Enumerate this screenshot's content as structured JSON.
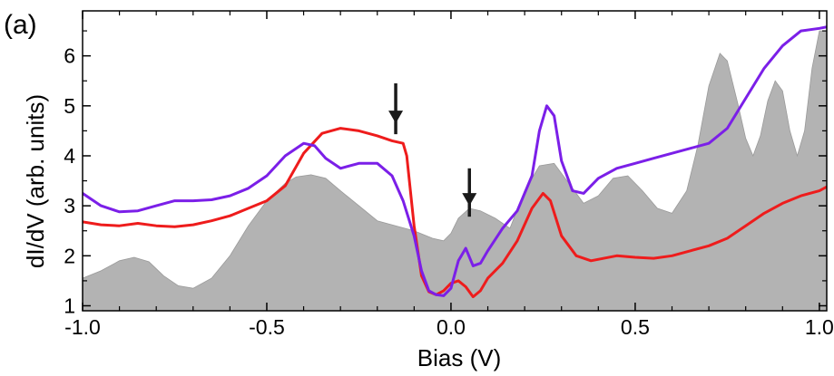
{
  "panel_label": "(a)",
  "chart_data": {
    "type": "line",
    "xlabel": "Bias (V)",
    "ylabel": "dI/dV (arb. units)",
    "xlim": [
      -1.0,
      1.02
    ],
    "ylim": [
      0.9,
      6.9
    ],
    "x_ticks": [
      -1.0,
      -0.5,
      0.0,
      0.5,
      1.0
    ],
    "x_tick_labels": [
      "-1.0",
      "-0.5",
      "0.0",
      "0.5",
      "1.0"
    ],
    "y_ticks": [
      1,
      2,
      3,
      4,
      5,
      6
    ],
    "y_tick_labels": [
      "1",
      "2",
      "3",
      "4",
      "5",
      "6"
    ],
    "colors": {
      "red": "#ee1c1c",
      "purple": "#7b1fe8",
      "fill": "#b3b3b3",
      "arrow": "#1a1a1a"
    },
    "arrows": [
      {
        "x": -0.15,
        "y_tip": 4.65,
        "y_tail": 5.45
      },
      {
        "x": 0.05,
        "y_tip": 3.0,
        "y_tail": 3.75
      }
    ],
    "series": [
      {
        "name": "shaded",
        "style": "area",
        "x": [
          -1.0,
          -0.95,
          -0.9,
          -0.86,
          -0.82,
          -0.78,
          -0.74,
          -0.7,
          -0.65,
          -0.6,
          -0.55,
          -0.5,
          -0.45,
          -0.42,
          -0.38,
          -0.34,
          -0.3,
          -0.25,
          -0.2,
          -0.15,
          -0.1,
          -0.05,
          -0.02,
          0.0,
          0.02,
          0.05,
          0.08,
          0.12,
          0.16,
          0.2,
          0.24,
          0.28,
          0.32,
          0.36,
          0.4,
          0.44,
          0.48,
          0.52,
          0.56,
          0.6,
          0.64,
          0.67,
          0.7,
          0.73,
          0.75,
          0.78,
          0.8,
          0.82,
          0.84,
          0.86,
          0.88,
          0.9,
          0.92,
          0.94,
          0.96,
          0.98,
          1.0,
          1.02
        ],
        "values": [
          1.55,
          1.7,
          1.9,
          1.97,
          1.88,
          1.6,
          1.4,
          1.35,
          1.55,
          2.0,
          2.6,
          3.1,
          3.45,
          3.58,
          3.62,
          3.55,
          3.3,
          3.0,
          2.7,
          2.6,
          2.5,
          2.35,
          2.3,
          2.45,
          2.75,
          2.95,
          2.9,
          2.75,
          2.55,
          3.3,
          3.8,
          3.85,
          3.45,
          3.05,
          3.2,
          3.55,
          3.6,
          3.3,
          2.95,
          2.85,
          3.3,
          4.2,
          5.4,
          6.05,
          5.9,
          5.0,
          4.35,
          4.0,
          4.4,
          5.1,
          5.5,
          5.3,
          4.5,
          4.0,
          4.5,
          5.75,
          6.5,
          6.5
        ]
      },
      {
        "name": "red",
        "style": "line",
        "x": [
          -1.0,
          -0.95,
          -0.9,
          -0.85,
          -0.8,
          -0.75,
          -0.7,
          -0.65,
          -0.6,
          -0.55,
          -0.5,
          -0.45,
          -0.4,
          -0.35,
          -0.3,
          -0.25,
          -0.2,
          -0.16,
          -0.13,
          -0.12,
          -0.1,
          -0.08,
          -0.06,
          -0.04,
          -0.02,
          0.0,
          0.02,
          0.04,
          0.06,
          0.08,
          0.1,
          0.14,
          0.18,
          0.22,
          0.25,
          0.27,
          0.3,
          0.34,
          0.38,
          0.45,
          0.5,
          0.55,
          0.6,
          0.65,
          0.7,
          0.75,
          0.8,
          0.85,
          0.9,
          0.95,
          1.0,
          1.02
        ],
        "values": [
          2.68,
          2.62,
          2.6,
          2.65,
          2.6,
          2.58,
          2.62,
          2.7,
          2.8,
          2.95,
          3.1,
          3.4,
          4.05,
          4.45,
          4.55,
          4.5,
          4.4,
          4.3,
          4.25,
          4.0,
          2.6,
          1.6,
          1.28,
          1.22,
          1.3,
          1.45,
          1.5,
          1.38,
          1.18,
          1.3,
          1.55,
          1.85,
          2.3,
          2.95,
          3.25,
          3.1,
          2.4,
          2.0,
          1.9,
          2.0,
          1.97,
          1.95,
          2.0,
          2.1,
          2.2,
          2.35,
          2.6,
          2.85,
          3.05,
          3.2,
          3.3,
          3.38
        ]
      },
      {
        "name": "purple",
        "style": "line",
        "x": [
          -1.0,
          -0.95,
          -0.9,
          -0.85,
          -0.8,
          -0.75,
          -0.7,
          -0.65,
          -0.6,
          -0.55,
          -0.5,
          -0.45,
          -0.4,
          -0.37,
          -0.34,
          -0.3,
          -0.25,
          -0.2,
          -0.16,
          -0.13,
          -0.1,
          -0.08,
          -0.06,
          -0.04,
          -0.02,
          0.0,
          0.02,
          0.04,
          0.06,
          0.08,
          0.1,
          0.14,
          0.18,
          0.22,
          0.24,
          0.26,
          0.28,
          0.3,
          0.33,
          0.36,
          0.4,
          0.45,
          0.5,
          0.55,
          0.6,
          0.65,
          0.7,
          0.75,
          0.8,
          0.85,
          0.9,
          0.95,
          1.0,
          1.02
        ],
        "values": [
          3.25,
          3.0,
          2.88,
          2.9,
          3.0,
          3.1,
          3.1,
          3.12,
          3.2,
          3.35,
          3.6,
          4.0,
          4.25,
          4.2,
          3.95,
          3.75,
          3.85,
          3.85,
          3.6,
          3.1,
          2.4,
          1.7,
          1.3,
          1.22,
          1.2,
          1.35,
          1.9,
          2.15,
          1.8,
          1.85,
          2.1,
          2.55,
          2.9,
          3.6,
          4.5,
          5.0,
          4.8,
          3.9,
          3.3,
          3.25,
          3.55,
          3.75,
          3.85,
          3.95,
          4.05,
          4.15,
          4.25,
          4.55,
          5.15,
          5.75,
          6.2,
          6.5,
          6.55,
          6.58
        ]
      }
    ]
  }
}
